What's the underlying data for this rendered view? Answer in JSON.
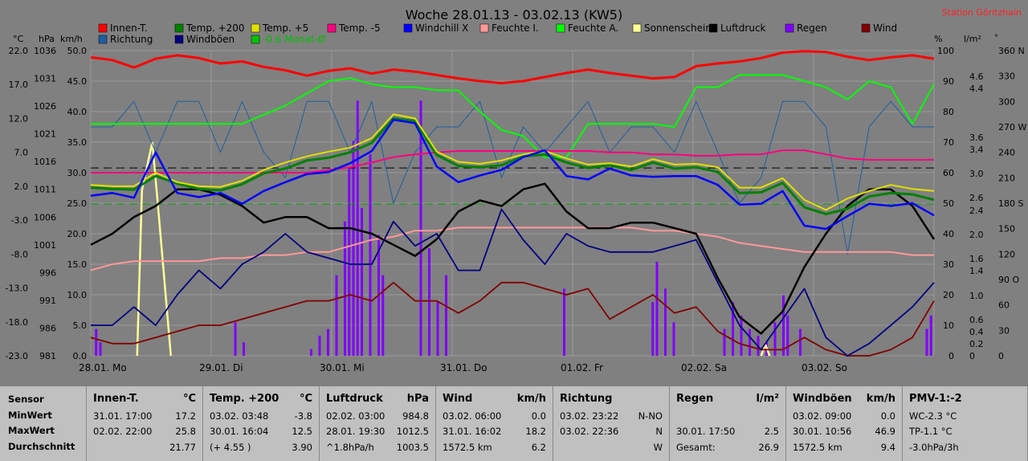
{
  "title": "Woche 28.01.13 - 03.02.13 (KW5)",
  "station": "Station Göritzhain",
  "legend": [
    {
      "label": "Innen-T.",
      "color": "#ff0000"
    },
    {
      "label": "Temp. +200",
      "color": "#008000"
    },
    {
      "label": "Temp. +5",
      "color": "#e0e000"
    },
    {
      "label": "Temp. -5",
      "color": "#ff007f"
    },
    {
      "label": "Windchill X",
      "color": "#0000ff"
    },
    {
      "label": "Feuchte I.",
      "color": "#ff9999"
    },
    {
      "label": "Feuchte A.",
      "color": "#00ff00"
    },
    {
      "label": "Sonnenschein",
      "color": "#ffff99"
    },
    {
      "label": "Luftdruck",
      "color": "#000000"
    },
    {
      "label": "Regen",
      "color": "#8000ff"
    },
    {
      "label": "Wind",
      "color": "#800000"
    },
    {
      "label": "Richtung",
      "color": "#1f5f9f"
    },
    {
      "label": "Windböen",
      "color": "#000080"
    },
    {
      "label": "-0.6 Monat-Ø",
      "color": "#00c000"
    }
  ],
  "axis_units": {
    "temp": "°C",
    "pressure": "hPa",
    "wind": "km/h",
    "humidity": "%",
    "rain": "l/m²",
    "direction": "°"
  },
  "chart_data": {
    "type": "line",
    "x_ticks": [
      "28.01. Mo",
      "29.01. Di",
      "30.01. Mi",
      "31.01. Do",
      "01.02. Fr",
      "02.02. Sa",
      "03.02. So"
    ],
    "temp_axis": {
      "min": -23,
      "max": 22,
      "ticks": [
        "22.0",
        "17.0",
        "12.0",
        "7.0",
        "2.0",
        "-3.0",
        "-8.0",
        "-13.0",
        "-18.0",
        "-23.0"
      ]
    },
    "pressure_axis": {
      "min": 981,
      "max": 1036,
      "ticks": [
        "1036",
        "1031",
        "1026",
        "1021",
        "1016",
        "1011",
        "1006",
        "1001",
        "996",
        "991",
        "986",
        "981"
      ]
    },
    "wind_axis": {
      "min": 0,
      "max": 50,
      "ticks": [
        "50.0",
        "45.0",
        "40.0",
        "35.0",
        "30.0",
        "25.0",
        "20.0",
        "15.0",
        "10.0",
        "5.0",
        "0.0"
      ]
    },
    "humidity_axis": {
      "min": 0,
      "max": 100,
      "ticks": [
        "100",
        "90",
        "80",
        "70",
        "60",
        "50",
        "40",
        "30",
        "20",
        "10",
        "0"
      ]
    },
    "rain_axis_ticks": [
      "4.6",
      "4.4",
      "3.6",
      "3.4",
      "3.0",
      "2.6",
      "2.4",
      "2.0",
      "1.6",
      "1.4",
      "1.0",
      "0.6",
      "0.4",
      "0.2",
      "0"
    ],
    "direction_axis_ticks": [
      "360 N",
      "330",
      "300",
      "270 W",
      "240",
      "210",
      "180 S",
      "150",
      "120",
      "90 O",
      "60",
      "30",
      "0"
    ],
    "series": [
      {
        "name": "Innen-T.",
        "axis": "temp",
        "values": [
          21.0,
          20.6,
          19.5,
          20.8,
          21.3,
          20.9,
          20.1,
          20.4,
          19.6,
          19.1,
          18.3,
          19.0,
          19.4,
          18.6,
          19.2,
          18.9,
          18.4,
          17.9,
          17.5,
          17.2,
          17.5,
          18.1,
          18.7,
          19.2,
          18.7,
          18.3,
          17.9,
          18.1,
          19.7,
          20.1,
          20.4,
          20.9,
          21.7,
          21.9,
          21.8,
          21.1,
          20.6,
          21.0,
          21.3,
          20.8
        ]
      },
      {
        "name": "Temp. +200",
        "axis": "temp",
        "values": [
          1.8,
          1.6,
          1.5,
          3.5,
          2.4,
          1.6,
          1.4,
          2.3,
          3.9,
          4.6,
          5.8,
          6.2,
          7.0,
          8.4,
          12.0,
          11.6,
          6.6,
          5.0,
          4.8,
          5.1,
          6.4,
          6.7,
          5.5,
          4.7,
          5.1,
          4.4,
          5.5,
          4.6,
          4.8,
          4.1,
          1.0,
          1.1,
          2.5,
          -1.1,
          -2.1,
          -1.3,
          0.5,
          1.0,
          0.8,
          0.0
        ]
      },
      {
        "name": "Temp. +5",
        "axis": "temp",
        "values": [
          2.2,
          2.0,
          2.0,
          4.0,
          2.6,
          2.0,
          1.9,
          2.8,
          4.4,
          5.5,
          6.4,
          7.1,
          7.7,
          9.1,
          12.6,
          12.0,
          7.1,
          5.6,
          5.3,
          5.8,
          6.7,
          7.2,
          6.1,
          5.2,
          5.4,
          4.9,
          6.0,
          5.2,
          5.3,
          4.8,
          1.8,
          1.8,
          3.2,
          0.0,
          -1.5,
          0.2,
          1.3,
          2.2,
          1.6,
          1.3
        ]
      },
      {
        "name": "Temp. -5",
        "axis": "temp",
        "values": [
          4.0,
          4.0,
          4.0,
          4.0,
          4.0,
          4.0,
          4.0,
          4.0,
          4.0,
          4.0,
          4.0,
          4.4,
          4.8,
          5.5,
          6.3,
          6.7,
          7.0,
          7.2,
          7.2,
          7.2,
          7.2,
          7.2,
          7.2,
          7.2,
          7.0,
          7.0,
          6.7,
          6.7,
          6.5,
          6.5,
          6.7,
          6.7,
          7.3,
          7.3,
          6.7,
          6.1,
          5.9,
          5.9,
          5.9,
          5.9
        ]
      },
      {
        "name": "Windchill X",
        "axis": "temp",
        "values": [
          0.6,
          1.0,
          0.3,
          7.0,
          1.0,
          0.4,
          1.0,
          -0.6,
          1.3,
          2.6,
          3.8,
          4.1,
          5.4,
          7.2,
          11.8,
          11.3,
          4.9,
          2.6,
          3.6,
          4.4,
          6.3,
          7.3,
          3.5,
          3.0,
          4.6,
          3.6,
          3.4,
          3.5,
          3.5,
          2.2,
          -0.7,
          -0.6,
          1.3,
          -3.8,
          -4.3,
          -2.4,
          -0.6,
          -0.9,
          -0.5,
          -2.3
        ]
      },
      {
        "name": "Feuchte I.",
        "axis": "humidity",
        "values": [
          28,
          30,
          31,
          31,
          31,
          31,
          32,
          32,
          33,
          33,
          34,
          34,
          36,
          38,
          39,
          41,
          41,
          42,
          42,
          42,
          42,
          42,
          42,
          42,
          42,
          42,
          41,
          41,
          40,
          39,
          37,
          36,
          35,
          34,
          34,
          34,
          34,
          34,
          33,
          33
        ]
      },
      {
        "name": "Feuchte A.",
        "axis": "humidity",
        "values": [
          76,
          76,
          76,
          76,
          76,
          76,
          76,
          76,
          79,
          82,
          86,
          90,
          91,
          89,
          88,
          88,
          87,
          87,
          80,
          74,
          72,
          65,
          65,
          76,
          76,
          76,
          76,
          75,
          88,
          88,
          92,
          92,
          92,
          90,
          88,
          84,
          90,
          88,
          76,
          89
        ]
      },
      {
        "name": "Luftdruck",
        "axis": "pressure",
        "values": [
          1001,
          1003,
          1006,
          1008,
          1011,
          1011,
          1010,
          1008,
          1005,
          1006,
          1006,
          1004,
          1004,
          1003,
          1001,
          999,
          1002,
          1007,
          1009,
          1008,
          1011,
          1012,
          1007,
          1004,
          1004,
          1005,
          1005,
          1004,
          1003,
          995,
          988,
          985,
          989,
          997,
          1003,
          1008,
          1011,
          1011,
          1008,
          1002
        ]
      },
      {
        "name": "Wind",
        "axis": "wind",
        "values": [
          3,
          2,
          2,
          3,
          4,
          5,
          5,
          6,
          7,
          8,
          9,
          9,
          10,
          9,
          12,
          9,
          9,
          7,
          9,
          12,
          12,
          11,
          10,
          11,
          6,
          8,
          10,
          7,
          8,
          4,
          2,
          1,
          1,
          3,
          1,
          0,
          0,
          1,
          3,
          9
        ]
      },
      {
        "name": "Windböen",
        "axis": "wind",
        "values": [
          5,
          5,
          8,
          5,
          10,
          14,
          11,
          15,
          17,
          20,
          17,
          16,
          15,
          15,
          22,
          18,
          20,
          14,
          14,
          24,
          19,
          15,
          20,
          18,
          17,
          17,
          17,
          18,
          19,
          12,
          5,
          1,
          6,
          11,
          3,
          0,
          2,
          5,
          8,
          12
        ]
      },
      {
        "name": "Richtung",
        "axis": "direction",
        "values": [
          270,
          270,
          300,
          240,
          300,
          300,
          240,
          300,
          240,
          210,
          300,
          300,
          240,
          300,
          180,
          240,
          270,
          270,
          300,
          210,
          270,
          240,
          270,
          300,
          240,
          270,
          270,
          240,
          300,
          240,
          180,
          210,
          300,
          300,
          270,
          120,
          270,
          300,
          270,
          270
        ]
      }
    ],
    "sunshine": {
      "peak_day": "28.01.",
      "peak_value_kmh_scale": 35
    },
    "rain_bars_note": "Regen bars on 30.01. and 31.01."
  },
  "stats": {
    "row_labels": [
      "Sensor",
      "MinWert",
      "MaxWert",
      "Durchschnitt"
    ],
    "columns": [
      {
        "header": "Innen-T.",
        "unit": "°C",
        "rows": [
          [
            "31.01. 17:00",
            "17.2"
          ],
          [
            "02.02. 22:00",
            "25.8"
          ],
          [
            "",
            "21.77"
          ]
        ]
      },
      {
        "header": "Temp. +200",
        "unit": "°C",
        "rows": [
          [
            "03.02. 03:48",
            "-3.8"
          ],
          [
            "30.01. 16:04",
            "12.5"
          ],
          [
            "(+ 4.55 )",
            "3.90"
          ]
        ]
      },
      {
        "header": "Luftdruck",
        "unit": "hPa",
        "rows": [
          [
            "02.02. 03:00",
            "984.8"
          ],
          [
            "28.01. 19:30",
            "1012.5"
          ],
          [
            "^1.8hPa/h",
            "1003.5"
          ]
        ]
      },
      {
        "header": "Wind",
        "unit": "km/h",
        "rows": [
          [
            "03.02. 06:00",
            "0.0"
          ],
          [
            "31.01. 16:02",
            "18.2"
          ],
          [
            "1572.5 km",
            "6.2"
          ]
        ]
      },
      {
        "header": "Richtung",
        "unit": "",
        "rows": [
          [
            "03.02. 23:22",
            "N-NO"
          ],
          [
            "03.02. 22:36",
            "N"
          ],
          [
            "",
            "W"
          ]
        ]
      },
      {
        "header": "Regen",
        "unit": "l/m²",
        "rows": [
          [
            "",
            ""
          ],
          [
            "30.01. 17:50",
            "2.5"
          ],
          [
            "Gesamt:",
            "26.9"
          ]
        ]
      },
      {
        "header": "Windböen",
        "unit": "km/h",
        "rows": [
          [
            "03.02. 09:00",
            "0.0"
          ],
          [
            "30.01. 10:56",
            "46.9"
          ],
          [
            "1572.5 km",
            "9.4"
          ]
        ]
      },
      {
        "header": "PMV-1:-2",
        "unit": "",
        "rows": [
          [
            "WC-2.3 °C",
            ""
          ],
          [
            "TP-1.1 °C",
            ""
          ],
          [
            "-3.0hPa/3h",
            ""
          ]
        ]
      }
    ]
  }
}
